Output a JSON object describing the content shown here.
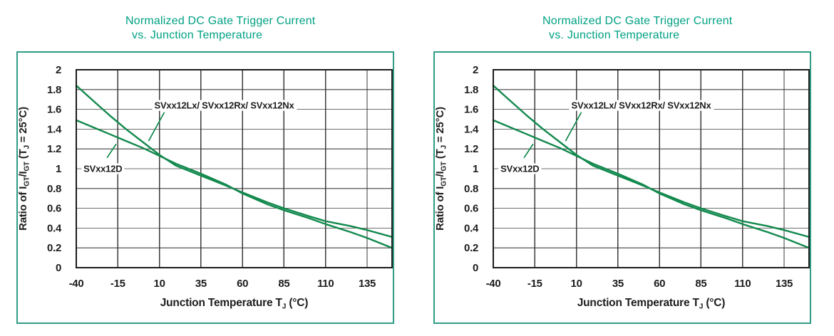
{
  "colors": {
    "title": "#00a183",
    "frame": "#2f9b85",
    "curve": "#12894d",
    "grid_h": "#6f6f6f",
    "grid_v": "#3a3a3a",
    "axis_box": "#1c1c1c",
    "text": "#1d1d1d",
    "label_bg": "#ffffff"
  },
  "chart_data": [
    {
      "type": "line",
      "title_line1": "Normalized DC Gate Trigger Current",
      "title_line2": "vs. Junction Temperature",
      "xlabel_segments": [
        {
          "t": "Junction Temperature T"
        },
        {
          "t": "J",
          "sub": true
        },
        {
          "t": " (°C)"
        }
      ],
      "ylabel_segments": [
        {
          "t": "Ratio of I"
        },
        {
          "t": "GT",
          "sub": true
        },
        {
          "t": "/I"
        },
        {
          "t": "GT",
          "sub": true
        },
        {
          "t": " (T"
        },
        {
          "t": "J",
          "sub": true
        },
        {
          "t": " = 25°C)"
        }
      ],
      "xlim": [
        -40,
        150
      ],
      "ylim": [
        0,
        2
      ],
      "grid": true,
      "x_gridlines": [
        -15,
        10,
        35,
        60,
        85,
        110,
        135
      ],
      "y_gridlines": [
        0.2,
        0.4,
        0.6,
        0.8,
        1,
        1.2,
        1.4,
        1.6,
        1.8
      ],
      "x_ticks": [
        {
          "label": "-40",
          "value": -40
        },
        {
          "label": "-15",
          "value": -15
        },
        {
          "label": "10",
          "value": 10
        },
        {
          "label": "35",
          "value": 35
        },
        {
          "label": "60",
          "value": 60
        },
        {
          "label": "85",
          "value": 85
        },
        {
          "label": "110",
          "value": 110
        },
        {
          "label": "135",
          "value": 135
        }
      ],
      "y_ticks": [
        {
          "label": "2",
          "value": 2
        },
        {
          "label": "1.8",
          "value": 1.8
        },
        {
          "label": "1.6",
          "value": 1.6
        },
        {
          "label": "1.4",
          "value": 1.4
        },
        {
          "label": "1.2",
          "value": 1.2
        },
        {
          "label": "1",
          "value": 1
        },
        {
          "label": "0.8",
          "value": 0.8
        },
        {
          "label": "0.6",
          "value": 0.6
        },
        {
          "label": "0.4",
          "value": 0.4
        },
        {
          "label": "0.2",
          "value": 0.2
        },
        {
          "label": "0",
          "value": 0
        }
      ],
      "series": [
        {
          "name": "SVxx12Lx/ SVxx12Rx/ SVxx12Nx",
          "points": [
            [
              -40,
              1.84
            ],
            [
              -30,
              1.69
            ],
            [
              -20,
              1.54
            ],
            [
              -10,
              1.4
            ],
            [
              0,
              1.27
            ],
            [
              10,
              1.14
            ],
            [
              20,
              1.03
            ],
            [
              35,
              0.93
            ],
            [
              50,
              0.83
            ],
            [
              60,
              0.76
            ],
            [
              75,
              0.66
            ],
            [
              85,
              0.6
            ],
            [
              100,
              0.52
            ],
            [
              110,
              0.47
            ],
            [
              125,
              0.42
            ],
            [
              135,
              0.38
            ],
            [
              150,
              0.31
            ]
          ]
        },
        {
          "name": "SVxx12D",
          "points": [
            [
              -40,
              1.49
            ],
            [
              -30,
              1.42
            ],
            [
              -20,
              1.35
            ],
            [
              -10,
              1.28
            ],
            [
              0,
              1.21
            ],
            [
              10,
              1.13
            ],
            [
              20,
              1.05
            ],
            [
              35,
              0.95
            ],
            [
              50,
              0.84
            ],
            [
              60,
              0.75
            ],
            [
              75,
              0.64
            ],
            [
              85,
              0.58
            ],
            [
              100,
              0.5
            ],
            [
              110,
              0.44
            ],
            [
              125,
              0.36
            ],
            [
              135,
              0.3
            ],
            [
              150,
              0.2
            ]
          ]
        }
      ],
      "annotations": [
        {
          "text": "SVxx12Lx/ SVxx12Rx/ SVxx12Nx",
          "x": 49,
          "y": 1.6,
          "mode": "baseline",
          "leader": [
            [
              13,
              1.57
            ],
            [
              3.5,
              1.28
            ]
          ]
        },
        {
          "text": "SVxx12D",
          "x": -24,
          "y": 1.0,
          "mode": "center",
          "leader": [
            [
              -21.5,
              1.11
            ],
            [
              -16,
              1.25
            ]
          ]
        }
      ]
    },
    {
      "type": "line",
      "title_line1": "Normalized DC Gate Trigger Current",
      "title_line2": "vs. Junction Temperature",
      "xlabel_segments": [
        {
          "t": "Junction Temperature T"
        },
        {
          "t": "J",
          "sub": true
        },
        {
          "t": " (°C)"
        }
      ],
      "ylabel_segments": [
        {
          "t": "Ratio of I"
        },
        {
          "t": "GT",
          "sub": true
        },
        {
          "t": "/I"
        },
        {
          "t": "GT",
          "sub": true
        },
        {
          "t": " (T"
        },
        {
          "t": "J",
          "sub": true
        },
        {
          "t": " = 25°C)"
        }
      ],
      "xlim": [
        -40,
        150
      ],
      "ylim": [
        0,
        2
      ],
      "grid": true,
      "x_gridlines": [
        -15,
        10,
        35,
        60,
        85,
        110,
        135
      ],
      "y_gridlines": [
        0.2,
        0.4,
        0.6,
        0.8,
        1,
        1.2,
        1.4,
        1.6,
        1.8
      ],
      "x_ticks": [
        {
          "label": "-40",
          "value": -40
        },
        {
          "label": "-15",
          "value": -15
        },
        {
          "label": "10",
          "value": 10
        },
        {
          "label": "35",
          "value": 35
        },
        {
          "label": "60",
          "value": 60
        },
        {
          "label": "85",
          "value": 85
        },
        {
          "label": "110",
          "value": 110
        },
        {
          "label": "135",
          "value": 135
        }
      ],
      "y_ticks": [
        {
          "label": "2",
          "value": 2
        },
        {
          "label": "1.8",
          "value": 1.8
        },
        {
          "label": "1.6",
          "value": 1.6
        },
        {
          "label": "1.4",
          "value": 1.4
        },
        {
          "label": "1.2",
          "value": 1.2
        },
        {
          "label": "1",
          "value": 1
        },
        {
          "label": "0.8",
          "value": 0.8
        },
        {
          "label": "0.6",
          "value": 0.6
        },
        {
          "label": "0.4",
          "value": 0.4
        },
        {
          "label": "0.2",
          "value": 0.2
        },
        {
          "label": "0",
          "value": 0
        }
      ],
      "series": [
        {
          "name": "SVxx12Lx/ SVxx12Rx/ SVxx12Nx",
          "points": [
            [
              -40,
              1.84
            ],
            [
              -30,
              1.69
            ],
            [
              -20,
              1.54
            ],
            [
              -10,
              1.4
            ],
            [
              0,
              1.27
            ],
            [
              10,
              1.14
            ],
            [
              20,
              1.03
            ],
            [
              35,
              0.93
            ],
            [
              50,
              0.83
            ],
            [
              60,
              0.76
            ],
            [
              75,
              0.66
            ],
            [
              85,
              0.6
            ],
            [
              100,
              0.52
            ],
            [
              110,
              0.47
            ],
            [
              125,
              0.42
            ],
            [
              135,
              0.38
            ],
            [
              150,
              0.31
            ]
          ]
        },
        {
          "name": "SVxx12D",
          "points": [
            [
              -40,
              1.49
            ],
            [
              -30,
              1.42
            ],
            [
              -20,
              1.35
            ],
            [
              -10,
              1.28
            ],
            [
              0,
              1.21
            ],
            [
              10,
              1.13
            ],
            [
              20,
              1.05
            ],
            [
              35,
              0.95
            ],
            [
              50,
              0.84
            ],
            [
              60,
              0.75
            ],
            [
              75,
              0.64
            ],
            [
              85,
              0.58
            ],
            [
              100,
              0.5
            ],
            [
              110,
              0.44
            ],
            [
              125,
              0.36
            ],
            [
              135,
              0.3
            ],
            [
              150,
              0.2
            ]
          ]
        }
      ],
      "annotations": [
        {
          "text": "SVxx12Lx/ SVxx12Rx/ SVxx12Nx",
          "x": 49,
          "y": 1.6,
          "mode": "baseline",
          "leader": [
            [
              13,
              1.57
            ],
            [
              3.5,
              1.28
            ]
          ]
        },
        {
          "text": "SVxx12D",
          "x": -24,
          "y": 1.0,
          "mode": "center",
          "leader": [
            [
              -21.5,
              1.11
            ],
            [
              -16,
              1.25
            ]
          ]
        }
      ]
    }
  ]
}
